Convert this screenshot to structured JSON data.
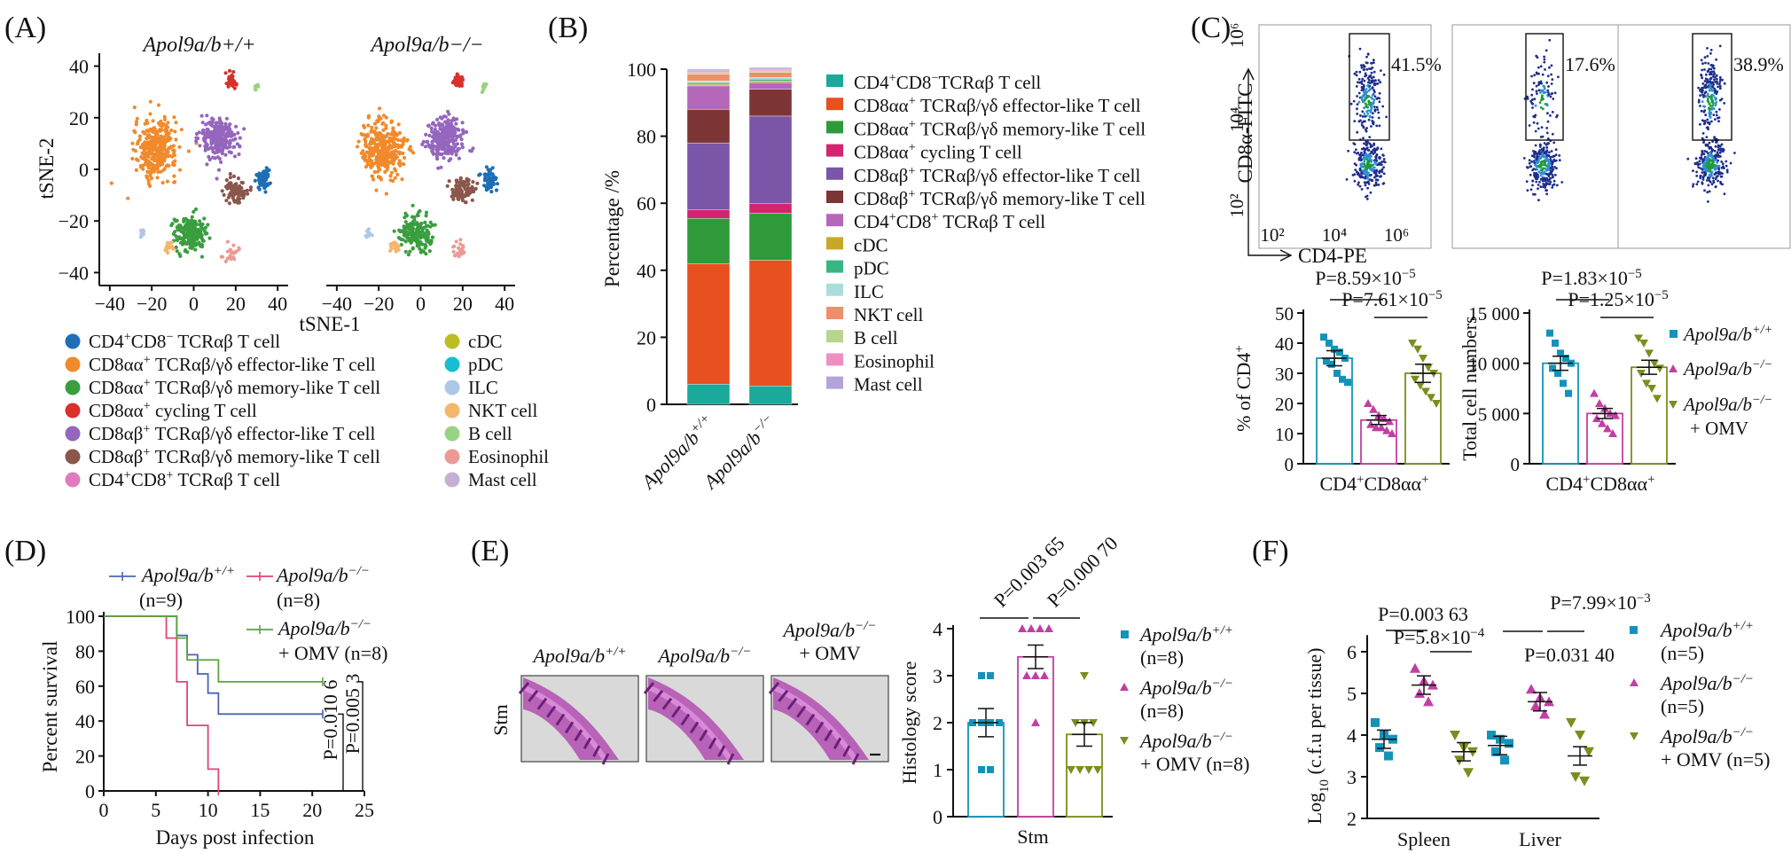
{
  "panels": {
    "A": {
      "letter": "(A)",
      "titles": [
        "Apol9a/b+/+",
        "Apol9a/b−/−"
      ],
      "xlabel": "tSNE-1",
      "ylabel": "tSNE-2",
      "xticks": [
        "−40",
        "−20",
        "0",
        "20",
        "40"
      ],
      "yticks": [
        "40",
        "20",
        "0",
        "−20",
        "−40"
      ],
      "legend": [
        {
          "label": "CD4+CD8− TCRαβ T cell",
          "color": "#1f6fb4"
        },
        {
          "label": "CD8αα+ TCRαβ/γδ effector-like T cell",
          "color": "#f08a2c"
        },
        {
          "label": "CD8αα+ TCRαβ/γδ memory-like T cell",
          "color": "#3a9e3f"
        },
        {
          "label": "CD8αα+ cycling T cell",
          "color": "#d9302c"
        },
        {
          "label": "CD8αβ+ TCRαβ/γδ effector-like T cell",
          "color": "#9466bd"
        },
        {
          "label": "CD8αβ+ TCRαβ/γδ memory-like T cell",
          "color": "#8b564b"
        },
        {
          "label": "CD4+CD8+ TCRαβ T cell",
          "color": "#e07bbf"
        },
        {
          "label": "cDC",
          "color": "#bcbd22"
        },
        {
          "label": "pDC",
          "color": "#17becf"
        },
        {
          "label": "ILC",
          "color": "#aec7e8"
        },
        {
          "label": "NKT cell",
          "color": "#f5b66d"
        },
        {
          "label": "B cell",
          "color": "#98d283"
        },
        {
          "label": "Eosinophil",
          "color": "#eb9a96"
        },
        {
          "label": "Mast cell",
          "color": "#c5b0d5"
        }
      ]
    },
    "B": {
      "letter": "(B)",
      "ylabel": "Percentage /%",
      "yticks": [
        "0",
        "20",
        "40",
        "60",
        "80",
        "100"
      ],
      "categories": [
        "Apol9a/b+/+",
        "Apol9a/b−/−"
      ],
      "legend": [
        {
          "label": "CD4+CD8−TCRαβ T cell",
          "color": "#1aa99b"
        },
        {
          "label": "CD8αα+ TCRαβ/γδ effector-like T cell",
          "color": "#e8501f"
        },
        {
          "label": "CD8αα+ TCRαβ/γδ memory-like T cell",
          "color": "#2f9a3a"
        },
        {
          "label": "CD8αα+ cycling T cell",
          "color": "#d4236f"
        },
        {
          "label": "CD8αβ+ TCRαβ/γδ effector-like T cell",
          "color": "#7b55a8"
        },
        {
          "label": "CD8αβ+ TCRαβ/γδ memory-like T cell",
          "color": "#7d3535"
        },
        {
          "label": "CD4+CD8+ TCRαβ T cell",
          "color": "#b568ba"
        },
        {
          "label": "cDC",
          "color": "#c8a82a"
        },
        {
          "label": "pDC",
          "color": "#39b584"
        },
        {
          "label": "ILC",
          "color": "#a9dedd"
        },
        {
          "label": "NKT cell",
          "color": "#f08d6a"
        },
        {
          "label": "B cell",
          "color": "#b9d48c"
        },
        {
          "label": "Eosinophil",
          "color": "#ee8fc2"
        },
        {
          "label": "Mast cell",
          "color": "#b4a3d8"
        }
      ]
    },
    "C": {
      "letter": "(C)",
      "flow_titles": [
        "Apol9a/b+/+",
        "Apol9a/b−/−",
        "Apol9a/b−/− + OMV"
      ],
      "flow_pct": [
        "41.5%",
        "17.6%",
        "38.9%"
      ],
      "flow_ylabel": "CD8α-FITC",
      "flow_xlabel": "CD4-PE",
      "flow_yticks": [
        "10⁶",
        "10⁴",
        "10²"
      ],
      "flow_xticks": [
        "10²",
        "10⁴",
        "10⁶"
      ],
      "left_ylabel": "% of CD4+",
      "right_ylabel": "Total cell numbers",
      "xcat": "CD4+CD8αα+",
      "left_yticks": [
        "0",
        "10",
        "20",
        "30",
        "40",
        "50"
      ],
      "right_yticks": [
        "0",
        "5 000",
        "10 000",
        "15 000"
      ],
      "left_p": [
        "P=8.59×10−5",
        "P=7.61×10−5"
      ],
      "right_p": [
        "P=1.83×10−5",
        "P=1.25×10−5"
      ],
      "legend": [
        "Apol9a/b+/+",
        "Apol9a/b−/−",
        "Apol9a/b−/−",
        "+ OMV"
      ]
    },
    "D": {
      "letter": "(D)",
      "ylabel": "Percent survival",
      "xlabel": "Days post infection",
      "xticks": [
        "0",
        "5",
        "10",
        "15",
        "20",
        "25"
      ],
      "yticks": [
        "0",
        "20",
        "40",
        "60",
        "80",
        "100"
      ],
      "legend": [
        "Apol9a/b+/+",
        "(n=9)",
        "Apol9a/b−/−",
        "(n=8)",
        "Apol9a/b−/−",
        "+ OMV (n=8)"
      ],
      "p": [
        "P=0.010 6",
        "P=0.005 3"
      ]
    },
    "E": {
      "letter": "(E)",
      "img_titles": [
        "Apol9a/b+/+",
        "Apol9a/b−/−",
        "Apol9a/b−/−",
        "+ OMV"
      ],
      "row_label": "Stm",
      "ylabel": "Histology score",
      "xcat": "Stm",
      "yticks": [
        "0",
        "1",
        "2",
        "3",
        "4"
      ],
      "p": [
        "P=0.003 65",
        "P=0.000 70"
      ],
      "legend": [
        "Apol9a/b+/+",
        "(n=8)",
        "Apol9a/b−/−",
        "(n=8)",
        "Apol9a/b−/−",
        "+ OMV (n=8)"
      ]
    },
    "F": {
      "letter": "(F)",
      "ylabel": "Log10 (c.f.u per tissue)",
      "categories": [
        "Spleen",
        "Liver"
      ],
      "yticks": [
        "2",
        "3",
        "4",
        "5",
        "6"
      ],
      "p": [
        "P=0.003 63",
        "P=5.8×10−4",
        "P=7.99×10−3",
        "P=0.031 40"
      ],
      "legend": [
        "Apol9a/b+/+",
        "(n=5)",
        "Apol9a/b−/−",
        "(n=5)",
        "Apol9a/b−/−",
        "+ OMV (n=5)"
      ]
    }
  },
  "chart_data": [
    {
      "type": "scatter",
      "panel": "A",
      "title": "Apol9a/b+/+ / Apol9a/b−/− tSNE",
      "xlabel": "tSNE-1",
      "ylabel": "tSNE-2",
      "xlim": [
        -45,
        45
      ],
      "ylim": [
        -45,
        45
      ],
      "clusters": [
        {
          "name": "CD8αα+ TCRαβ/γδ effector-like T cell",
          "cx": -18,
          "cy": 8,
          "sx": 9,
          "sy": 10
        },
        {
          "name": "CD8αβ+ TCRαβ/γδ effector-like T cell",
          "cx": 12,
          "cy": 12,
          "sx": 8,
          "sy": 7
        },
        {
          "name": "CD8αβ+ TCRαβ/γδ memory-like T cell",
          "cx": 20,
          "cy": -8,
          "sx": 5,
          "sy": 4
        },
        {
          "name": "CD8αα+ TCRαβ/γδ memory-like T cell",
          "cx": -2,
          "cy": -25,
          "sx": 7,
          "sy": 6
        },
        {
          "name": "CD4+CD8− TCRαβ T cell",
          "cx": 33,
          "cy": -4,
          "sx": 3,
          "sy": 4
        },
        {
          "name": "CD8αα+ cycling T cell",
          "cx": 18,
          "cy": 34,
          "sx": 2.5,
          "sy": 2.5
        },
        {
          "name": "NKT cell",
          "cx": -12,
          "cy": -30,
          "sx": 2,
          "sy": 1.5
        },
        {
          "name": "ILC",
          "cx": -25,
          "cy": -25,
          "sx": 1.5,
          "sy": 1.5
        },
        {
          "name": "B cell",
          "cx": 30,
          "cy": 32,
          "sx": 1,
          "sy": 2
        },
        {
          "name": "Eosinophil",
          "cx": 18,
          "cy": -32,
          "sx": 3,
          "sy": 3
        }
      ]
    },
    {
      "type": "bar",
      "panel": "B",
      "stacked": true,
      "ylabel": "Percentage /%",
      "ylim": [
        0,
        100
      ],
      "categories": [
        "Apol9a/b+/+",
        "Apol9a/b−/−"
      ],
      "series": [
        {
          "name": "CD4+CD8−TCRαβ T cell",
          "values": [
            6,
            5.5
          ]
        },
        {
          "name": "CD8αα+ TCRαβ/γδ effector-like T cell",
          "values": [
            36,
            37.5
          ]
        },
        {
          "name": "CD8αα+ TCRαβ/γδ memory-like T cell",
          "values": [
            13.5,
            14
          ]
        },
        {
          "name": "CD8αα+ cycling T cell",
          "values": [
            2.5,
            3
          ]
        },
        {
          "name": "CD8αβ+ TCRαβ/γδ effector-like T cell",
          "values": [
            20,
            26
          ]
        },
        {
          "name": "CD8αβ+ TCRαβ/γδ memory-like T cell",
          "values": [
            10,
            8
          ]
        },
        {
          "name": "CD4+CD8+ TCRαβ T cell",
          "values": [
            7,
            2
          ]
        },
        {
          "name": "cDC",
          "values": [
            0.5,
            0.5
          ]
        },
        {
          "name": "pDC",
          "values": [
            0.5,
            0.5
          ]
        },
        {
          "name": "ILC",
          "values": [
            0.5,
            0.5
          ]
        },
        {
          "name": "NKT cell",
          "values": [
            2,
            1.5
          ]
        },
        {
          "name": "B cell",
          "values": [
            0.5,
            0.5
          ]
        },
        {
          "name": "Eosinophil",
          "values": [
            0.5,
            0.5
          ]
        },
        {
          "name": "Mast cell",
          "values": [
            0.5,
            0.5
          ]
        }
      ]
    },
    {
      "type": "bar",
      "panel": "C-left",
      "ylabel": "% of CD4+",
      "ylim": [
        0,
        50
      ],
      "categories": [
        "Apol9a/b+/+",
        "Apol9a/b−/−",
        "Apol9a/b−/− + OMV"
      ],
      "values": [
        35,
        14.5,
        30
      ],
      "errors": [
        2.5,
        1.5,
        3
      ],
      "points": [
        [
          42,
          40,
          38,
          37,
          35,
          34,
          33,
          30,
          28,
          27
        ],
        [
          20,
          18,
          16,
          15,
          14,
          13,
          12,
          12,
          11,
          10
        ],
        [
          40,
          38,
          35,
          32,
          30,
          28,
          26,
          24,
          22,
          20
        ]
      ]
    },
    {
      "type": "bar",
      "panel": "C-right",
      "ylabel": "Total cell numbers",
      "ylim": [
        0,
        15000
      ],
      "categories": [
        "Apol9a/b+/+",
        "Apol9a/b−/−",
        "Apol9a/b−/− + OMV"
      ],
      "values": [
        10000,
        5000,
        9600
      ],
      "errors": [
        700,
        500,
        700
      ],
      "points": [
        [
          13000,
          12000,
          11000,
          10500,
          10000,
          9500,
          9000,
          8000,
          7000
        ],
        [
          7000,
          6000,
          5500,
          5000,
          4800,
          4500,
          4000,
          3500,
          3000
        ],
        [
          12500,
          12000,
          11000,
          10000,
          9500,
          9000,
          8000,
          7500,
          6500
        ]
      ]
    },
    {
      "type": "line",
      "panel": "D",
      "xlabel": "Days post infection",
      "ylabel": "Percent survival",
      "xlim": [
        0,
        25
      ],
      "ylim": [
        0,
        100
      ],
      "series": [
        {
          "name": "Apol9a/b+/+",
          "x": [
            0,
            7,
            8,
            9,
            10,
            11,
            21
          ],
          "y": [
            100,
            89,
            78,
            67,
            56,
            44,
            44
          ]
        },
        {
          "name": "Apol9a/b−/−",
          "x": [
            0,
            6,
            7,
            8,
            9,
            10,
            11
          ],
          "y": [
            100,
            87.5,
            62.5,
            37.5,
            37.5,
            12.5,
            0
          ]
        },
        {
          "name": "Apol9a/b−/− + OMV",
          "x": [
            0,
            7,
            8,
            9,
            10,
            11,
            21
          ],
          "y": [
            100,
            87.5,
            75,
            75,
            75,
            62.5,
            62.5
          ]
        }
      ]
    },
    {
      "type": "bar",
      "panel": "E",
      "ylabel": "Histology score",
      "ylim": [
        0,
        4
      ],
      "categories": [
        "Apol9a/b+/+",
        "Apol9a/b−/−",
        "Apol9a/b−/− + OMV"
      ],
      "values": [
        2,
        3.4,
        1.75
      ],
      "errors": [
        0.3,
        0.25,
        0.25
      ],
      "points": [
        [
          3,
          3,
          2,
          2,
          2,
          2,
          1,
          1
        ],
        [
          4,
          4,
          4,
          4,
          3,
          3,
          3,
          2
        ],
        [
          3,
          2,
          2,
          2,
          1,
          1,
          1,
          1
        ]
      ]
    },
    {
      "type": "scatter",
      "panel": "F",
      "ylabel": "Log10 (c.f.u per tissue)",
      "ylim": [
        2,
        6.5
      ],
      "categories": [
        "Spleen",
        "Liver"
      ],
      "groups": [
        "Apol9a/b+/+",
        "Apol9a/b−/−",
        "Apol9a/b−/− + OMV"
      ],
      "means": [
        [
          3.9,
          5.2,
          3.6
        ],
        [
          3.75,
          4.8,
          3.5
        ]
      ],
      "points": [
        [
          [
            4.3,
            4.0,
            3.9,
            3.7,
            3.5
          ],
          [
            5.6,
            5.3,
            5.2,
            5.0,
            4.8
          ],
          [
            4.0,
            3.7,
            3.6,
            3.4,
            3.1
          ]
        ],
        [
          [
            4.0,
            3.9,
            3.8,
            3.6,
            3.4
          ],
          [
            5.1,
            4.9,
            4.8,
            4.7,
            4.5
          ],
          [
            4.3,
            4.0,
            3.6,
            3.0,
            2.9
          ]
        ]
      ]
    }
  ]
}
